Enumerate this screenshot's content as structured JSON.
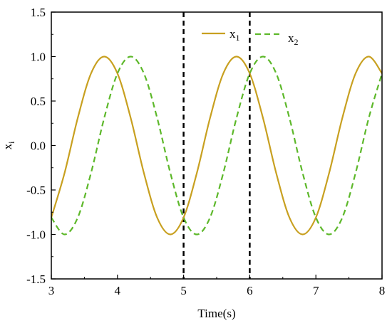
{
  "chart_data": {
    "type": "line",
    "xlabel": "Time(s)",
    "ylabel_main": "x",
    "ylabel_sub": "i",
    "xlim": [
      3,
      8
    ],
    "ylim": [
      -1.5,
      1.5
    ],
    "xticks": [
      3,
      4,
      5,
      6,
      7,
      8
    ],
    "yticks": [
      "-1.5",
      "-1.0",
      "-0.5",
      "0.0",
      "0.5",
      "1.0",
      "1.5"
    ],
    "grid": false,
    "legend_position": "top-right",
    "vertical_markers": [
      5,
      6
    ],
    "series": [
      {
        "name_main": "x",
        "name_sub": "1",
        "color": "#C8A020",
        "dash": "solid",
        "x": [
          3.0,
          3.2,
          3.4,
          3.6,
          3.8,
          4.0,
          4.2,
          4.4,
          4.6,
          4.8,
          5.0,
          5.2,
          5.4,
          5.6,
          5.8,
          6.0,
          6.2,
          6.4,
          6.6,
          6.8,
          7.0,
          7.2,
          7.4,
          7.6,
          7.8,
          8.0
        ],
        "y": [
          -0.81,
          -0.31,
          0.31,
          0.81,
          1.0,
          0.81,
          0.31,
          -0.31,
          -0.81,
          -1.0,
          -0.81,
          -0.31,
          0.31,
          0.81,
          1.0,
          0.81,
          0.31,
          -0.31,
          -0.81,
          -1.0,
          -0.81,
          -0.31,
          0.31,
          0.81,
          1.0,
          0.81
        ]
      },
      {
        "name_main": "x",
        "name_sub": "2",
        "color": "#5DB82A",
        "dash": "dashed",
        "x": [
          3.0,
          3.2,
          3.4,
          3.6,
          3.8,
          4.0,
          4.2,
          4.4,
          4.6,
          4.8,
          5.0,
          5.2,
          5.4,
          5.6,
          5.8,
          6.0,
          6.2,
          6.4,
          6.6,
          6.8,
          7.0,
          7.2,
          7.4,
          7.6,
          7.8,
          8.0
        ],
        "y": [
          -0.81,
          -1.0,
          -0.81,
          -0.31,
          0.31,
          0.81,
          1.0,
          0.81,
          0.31,
          -0.31,
          -0.81,
          -1.0,
          -0.81,
          -0.31,
          0.31,
          0.81,
          1.0,
          0.81,
          0.31,
          -0.31,
          -0.81,
          -1.0,
          -0.81,
          -0.31,
          0.31,
          0.81
        ]
      }
    ]
  }
}
